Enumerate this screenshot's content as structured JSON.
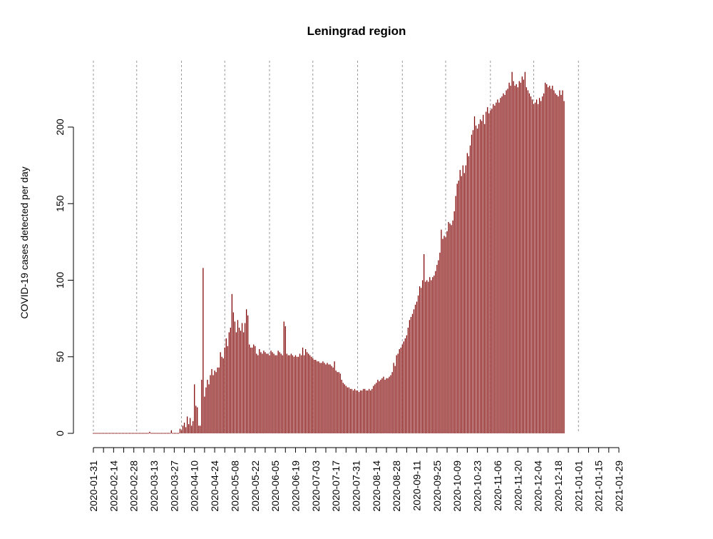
{
  "chart_data": {
    "type": "bar",
    "title": "Leningrad region",
    "xlabel": "",
    "ylabel": "COVID-19 cases detected per day",
    "x_start": "2020-01-31",
    "x_end": "2021-01-29",
    "ylim": [
      0,
      235
    ],
    "y_ticks": [
      0,
      50,
      100,
      150,
      200
    ],
    "x_tick_labels": [
      "2020-01-31",
      "2020-02-14",
      "2020-02-28",
      "2020-03-13",
      "2020-03-27",
      "2020-04-10",
      "2020-04-24",
      "2020-05-08",
      "2020-05-22",
      "2020-06-05",
      "2020-06-19",
      "2020-07-03",
      "2020-07-17",
      "2020-07-31",
      "2020-08-14",
      "2020-08-28",
      "2020-09-11",
      "2020-09-25",
      "2020-10-09",
      "2020-10-23",
      "2020-11-06",
      "2020-11-20",
      "2020-12-04",
      "2020-12-18",
      "2021-01-01",
      "2021-01-15",
      "2021-01-29"
    ],
    "vertical_gridlines_dates": [
      "2020-01-31",
      "2020-03-01",
      "2020-04-01",
      "2020-05-01",
      "2020-06-01",
      "2020-07-01",
      "2020-08-01",
      "2020-09-01",
      "2020-10-01",
      "2020-11-01",
      "2020-12-01",
      "2021-01-01"
    ],
    "grid": "vertical dotted monthly lines",
    "bar_color": "#7f0000",
    "values": [
      0,
      0,
      0,
      0,
      0,
      0,
      0,
      0,
      0,
      0,
      0,
      0,
      0,
      0,
      0,
      0,
      0,
      0,
      0,
      0,
      0,
      0,
      0,
      0,
      0,
      0,
      0,
      0,
      0,
      0,
      0,
      0,
      0,
      0,
      0,
      0,
      0,
      0,
      0,
      1,
      0,
      0,
      0,
      0,
      0,
      0,
      0,
      0,
      0,
      0,
      0,
      0,
      0,
      0,
      2,
      0,
      0,
      0,
      0,
      0,
      3,
      2,
      5,
      7,
      4,
      11,
      6,
      10,
      5,
      8,
      32,
      18,
      17,
      5,
      5,
      35,
      108,
      24,
      30,
      35,
      32,
      38,
      42,
      38,
      41,
      40,
      43,
      43,
      53,
      50,
      49,
      56,
      62,
      57,
      66,
      69,
      91,
      79,
      73,
      66,
      74,
      69,
      67,
      72,
      66,
      72,
      81,
      77,
      58,
      56,
      56,
      58,
      57,
      52,
      51,
      55,
      53,
      52,
      54,
      53,
      52,
      52,
      51,
      54,
      53,
      52,
      51,
      51,
      54,
      53,
      52,
      51,
      73,
      70,
      52,
      51,
      51,
      52,
      51,
      50,
      51,
      50,
      50,
      52,
      51,
      56,
      51,
      55,
      53,
      52,
      51,
      50,
      49,
      48,
      48,
      47,
      47,
      46,
      46,
      47,
      46,
      45,
      46,
      45,
      45,
      44,
      43,
      47,
      41,
      40,
      40,
      39,
      35,
      33,
      32,
      31,
      30,
      30,
      29,
      29,
      28,
      29,
      28,
      28,
      27,
      28,
      28,
      29,
      29,
      28,
      28,
      29,
      28,
      29,
      31,
      32,
      33,
      35,
      34,
      35,
      36,
      37,
      35,
      36,
      36,
      37,
      38,
      40,
      46,
      44,
      51,
      52,
      55,
      56,
      58,
      60,
      62,
      64,
      69,
      74,
      76,
      78,
      81,
      84,
      86,
      90,
      96,
      95,
      100,
      117,
      99,
      100,
      99,
      102,
      100,
      102,
      103,
      106,
      110,
      113,
      118,
      133,
      127,
      129,
      128,
      132,
      138,
      137,
      136,
      139,
      145,
      155,
      163,
      165,
      172,
      168,
      175,
      170,
      175,
      183,
      181,
      188,
      195,
      198,
      207,
      201,
      199,
      202,
      205,
      204,
      208,
      202,
      210,
      213,
      209,
      211,
      212,
      215,
      214,
      216,
      218,
      216,
      219,
      220,
      222,
      221,
      224,
      225,
      229,
      227,
      236,
      230,
      227,
      228,
      226,
      230,
      229,
      233,
      231,
      236,
      226,
      224,
      222,
      220,
      218,
      215,
      216,
      218,
      215,
      219,
      217,
      220,
      222,
      229,
      228,
      226,
      227,
      225,
      227,
      224,
      222,
      221,
      220,
      224,
      221,
      224,
      217
    ]
  }
}
